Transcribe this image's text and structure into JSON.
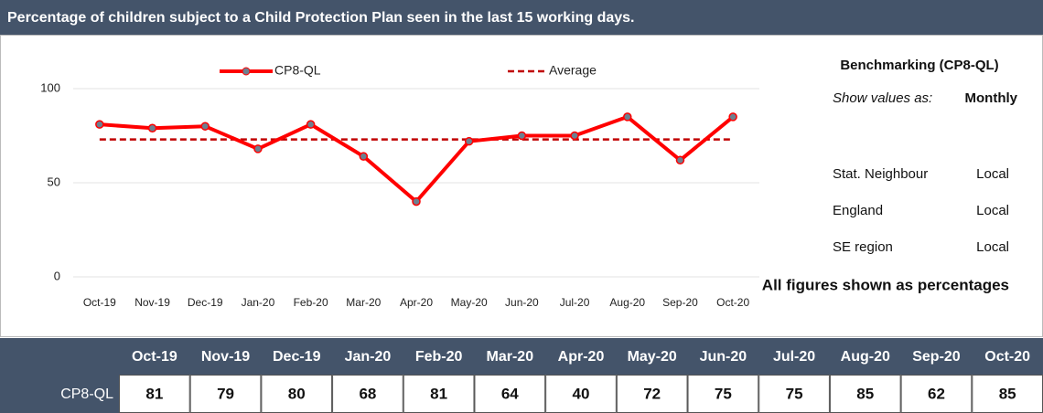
{
  "chart_data": {
    "type": "line",
    "title": "Percentage of children subject to a Child Protection Plan seen in the last 15 working days.",
    "categories": [
      "Oct-19",
      "Nov-19",
      "Dec-19",
      "Jan-20",
      "Feb-20",
      "Mar-20",
      "Apr-20",
      "May-20",
      "Jun-20",
      "Jul-20",
      "Aug-20",
      "Sep-20",
      "Oct-20"
    ],
    "series": [
      {
        "name": "CP8-QL",
        "color": "#ff0000",
        "values": [
          81,
          79,
          80,
          68,
          81,
          64,
          40,
          72,
          75,
          75,
          85,
          62,
          85
        ]
      }
    ],
    "average_line": {
      "name": "Average",
      "color": "#c00000",
      "value": 73
    },
    "ylim": [
      0,
      100
    ],
    "yticks": [
      0,
      50,
      100
    ],
    "grid": true
  },
  "benchmark_panel": {
    "title": "Benchmarking (CP8-QL)",
    "show_label": "Show values as:",
    "show_value": "Monthly",
    "rows": [
      [
        "Stat. Neighbour",
        "Local"
      ],
      [
        "England",
        "Local"
      ],
      [
        "SE region",
        "Local"
      ]
    ],
    "note": "All figures shown as percentages"
  }
}
